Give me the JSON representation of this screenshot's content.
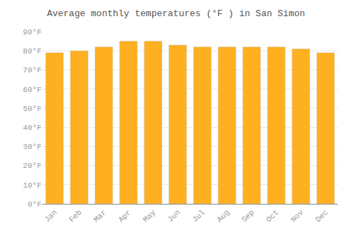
{
  "chart_data": {
    "type": "bar",
    "title": "Average monthly temperatures (°F ) in San Simon",
    "categories": [
      "Jan",
      "Feb",
      "Mar",
      "Apr",
      "May",
      "Jun",
      "Jul",
      "Aug",
      "Sep",
      "Oct",
      "Nov",
      "Dec"
    ],
    "values": [
      79,
      80,
      82,
      85,
      85,
      83,
      82,
      82,
      82,
      82,
      81,
      79
    ],
    "color": "#FFB020",
    "ylim": [
      0,
      90
    ],
    "yticks": [
      {
        "value": 0,
        "label": "0°F"
      },
      {
        "value": 10,
        "label": "10°F"
      },
      {
        "value": 20,
        "label": "20°F"
      },
      {
        "value": 30,
        "label": "30°F"
      },
      {
        "value": 40,
        "label": "40°F"
      },
      {
        "value": 50,
        "label": "50°F"
      },
      {
        "value": 60,
        "label": "60°F"
      },
      {
        "value": 70,
        "label": "70°F"
      },
      {
        "value": 80,
        "label": "80°F"
      },
      {
        "value": 90,
        "label": "90°F"
      }
    ],
    "grid": true
  }
}
